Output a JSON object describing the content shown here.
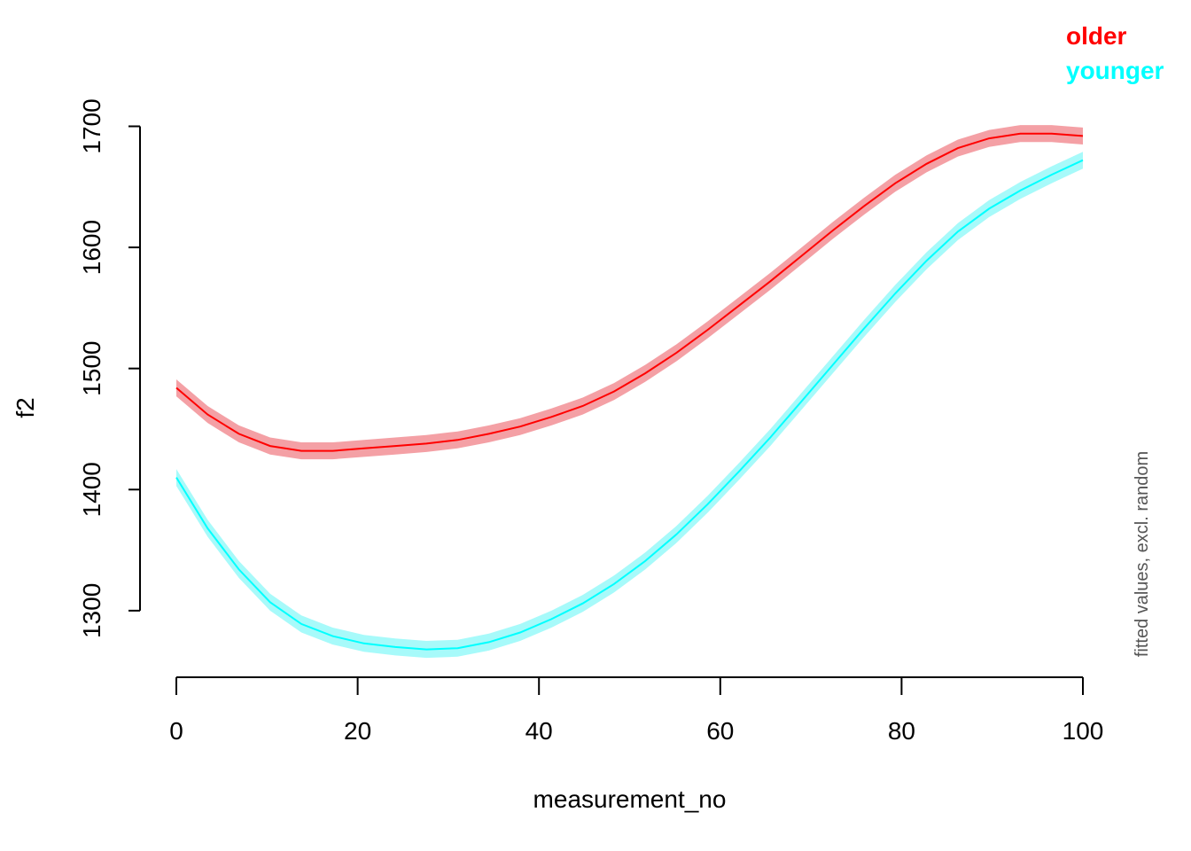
{
  "chart_data": {
    "type": "line",
    "xlabel": "measurement_no",
    "ylabel": "f2",
    "side_note": "fitted values, excl. random",
    "xlim": [
      0,
      100
    ],
    "ylim": [
      1245,
      1715
    ],
    "x_ticks": [
      "0",
      "20",
      "40",
      "60",
      "80",
      "100"
    ],
    "y_ticks": [
      "1300",
      "1400",
      "1500",
      "1600",
      "1700"
    ],
    "legend": {
      "placement": "top-right"
    },
    "grid": false,
    "x": [
      0,
      3.45,
      6.9,
      10.34,
      13.79,
      17.24,
      20.69,
      24.14,
      27.59,
      31.03,
      34.48,
      37.93,
      41.38,
      44.83,
      48.28,
      51.72,
      55.17,
      58.62,
      62.07,
      65.52,
      68.97,
      72.41,
      75.86,
      79.31,
      82.76,
      86.21,
      89.66,
      93.1,
      96.55,
      100
    ],
    "series": [
      {
        "name": "older",
        "color": "#FF0000",
        "band_color": "#F4A0A5",
        "ci_halfwidth": 7,
        "values": [
          1484,
          1462,
          1446,
          1436,
          1432,
          1432,
          1434,
          1436,
          1438,
          1441,
          1446,
          1452,
          1460,
          1469,
          1481,
          1496,
          1513,
          1532,
          1552,
          1572,
          1593,
          1614,
          1634,
          1653,
          1669,
          1682,
          1690,
          1694,
          1694,
          1692
        ]
      },
      {
        "name": "younger",
        "color": "#00FFFF",
        "band_color": "#A7FAFA",
        "ci_halfwidth": 7,
        "values": [
          1410,
          1368,
          1334,
          1307,
          1289,
          1279,
          1273,
          1270,
          1268,
          1269,
          1274,
          1282,
          1293,
          1306,
          1322,
          1341,
          1363,
          1388,
          1415,
          1443,
          1473,
          1503,
          1533,
          1562,
          1589,
          1613,
          1632,
          1647,
          1660,
          1672
        ]
      }
    ]
  }
}
